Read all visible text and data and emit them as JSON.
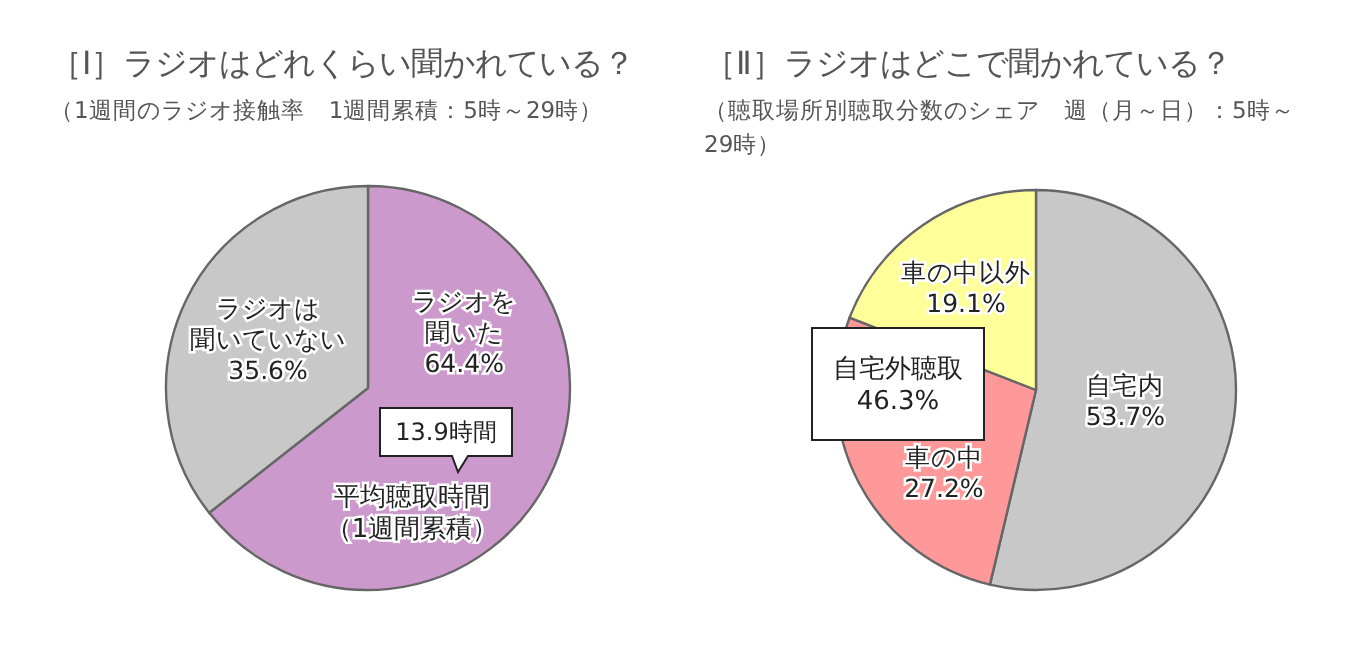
{
  "chart_data": [
    {
      "type": "pie",
      "title": "［Ⅰ］ラジオはどれくらい聞かれている？",
      "subtitle": "（1週間のラジオ接触率　1週間累積：5時～29時）",
      "categories": [
        "ラジオを聞いた",
        "ラジオは聞いていない"
      ],
      "values": [
        64.4,
        35.6
      ],
      "colors": [
        "#cc99cc",
        "#c8c8c8"
      ],
      "value_labels": [
        "64.4%",
        "35.6%"
      ],
      "annotations": [
        "13.9時間",
        "平均聴取時間（1週間累積）"
      ]
    },
    {
      "type": "pie",
      "title": "［Ⅱ］ラジオはどこで聞かれている？",
      "subtitle": "（聴取場所別聴取分数のシェア　週（月～日）：5時～29時）",
      "categories": [
        "自宅内",
        "車の中",
        "車の中以外"
      ],
      "values": [
        53.7,
        27.2,
        19.1
      ],
      "colors": [
        "#c8c8c8",
        "#ff9999",
        "#ffff99"
      ],
      "value_labels": [
        "53.7%",
        "27.2%",
        "19.1%"
      ],
      "annotations": [
        "自宅外聴取\n46.3%"
      ]
    }
  ]
}
